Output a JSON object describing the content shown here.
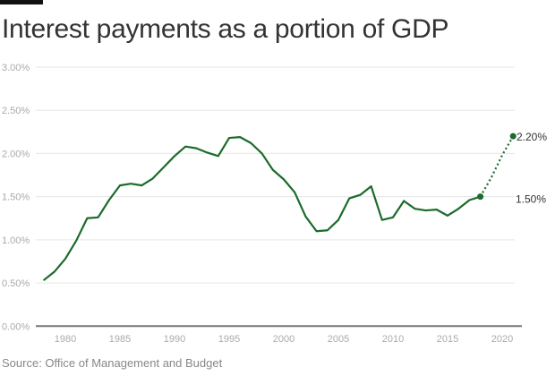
{
  "title": "Interest payments as a portion of GDP",
  "source": "Source: Office of Management and Budget",
  "chart_data": {
    "type": "line",
    "title": "Interest payments as a portion of GDP",
    "xlabel": "",
    "ylabel": "",
    "ylim": [
      0,
      3
    ],
    "xlim": [
      1977.3,
      2021.8
    ],
    "grid": true,
    "line_color": "#1b6b2b",
    "y_ticks": [
      "0.00%",
      "0.50%",
      "1.00%",
      "1.50%",
      "2.00%",
      "2.50%",
      "3.00%"
    ],
    "x_ticks": [
      "1980",
      "1985",
      "1990",
      "1995",
      "2000",
      "2005",
      "2010",
      "2015",
      "2020"
    ],
    "series": [
      {
        "style": "solid",
        "x": [
          1978,
          1979,
          1980,
          1981,
          1982,
          1983,
          1984,
          1985,
          1986,
          1987,
          1988,
          1989,
          1990,
          1991,
          1992,
          1993,
          1994,
          1995,
          1996,
          1997,
          1998,
          1999,
          2000,
          2001,
          2002,
          2003,
          2004,
          2005,
          2006,
          2007,
          2008,
          2009,
          2010,
          2011,
          2012,
          2013,
          2014,
          2015,
          2016,
          2017,
          2018
        ],
        "y": [
          0.53,
          0.63,
          0.78,
          0.99,
          1.25,
          1.26,
          1.46,
          1.63,
          1.65,
          1.63,
          1.71,
          1.84,
          1.97,
          2.08,
          2.06,
          2.01,
          1.97,
          2.18,
          2.19,
          2.12,
          2.0,
          1.81,
          1.7,
          1.55,
          1.27,
          1.1,
          1.11,
          1.23,
          1.48,
          1.52,
          1.62,
          1.23,
          1.26,
          1.45,
          1.36,
          1.34,
          1.35,
          1.28,
          1.36,
          1.46,
          1.5
        ]
      },
      {
        "style": "dotted",
        "x": [
          2018,
          2019,
          2020,
          2021
        ],
        "y": [
          1.5,
          1.72,
          1.98,
          2.2
        ]
      }
    ],
    "annotations": [
      {
        "x": 2018,
        "y": 1.5,
        "label": "1.50%"
      },
      {
        "x": 2021,
        "y": 2.2,
        "label": "2.20%"
      }
    ]
  }
}
